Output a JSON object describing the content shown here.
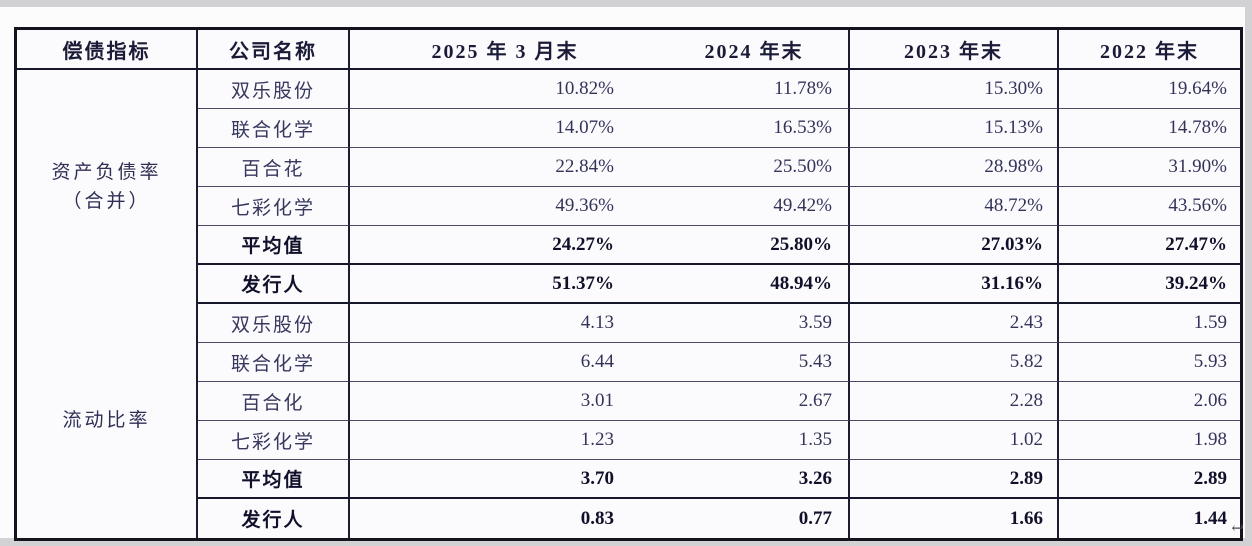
{
  "table": {
    "columns": [
      "偿债指标",
      "公司名称",
      "2025 年 3 月末",
      "2024 年末",
      "2023 年末",
      "2022 年末"
    ],
    "sections": [
      {
        "indicator": "资产负债率\n（合并）",
        "rows": [
          {
            "company": "双乐股份",
            "values": [
              "10.82%",
              "11.78%",
              "15.30%",
              "19.64%"
            ]
          },
          {
            "company": "联合化学",
            "values": [
              "14.07%",
              "16.53%",
              "15.13%",
              "14.78%"
            ]
          },
          {
            "company": "百合花",
            "values": [
              "22.84%",
              "25.50%",
              "28.98%",
              "31.90%"
            ]
          },
          {
            "company": "七彩化学",
            "values": [
              "49.36%",
              "49.42%",
              "48.72%",
              "43.56%"
            ]
          },
          {
            "company": "平均值",
            "values": [
              "24.27%",
              "25.80%",
              "27.03%",
              "27.47%"
            ]
          },
          {
            "company": "发行人",
            "values": [
              "51.37%",
              "48.94%",
              "31.16%",
              "39.24%"
            ]
          }
        ]
      },
      {
        "indicator": "流动比率",
        "rows": [
          {
            "company": "双乐股份",
            "values": [
              "4.13",
              "3.59",
              "2.43",
              "1.59"
            ]
          },
          {
            "company": "联合化学",
            "values": [
              "6.44",
              "5.43",
              "5.82",
              "5.93"
            ]
          },
          {
            "company": "百合化",
            "values": [
              "3.01",
              "2.67",
              "2.28",
              "2.06"
            ]
          },
          {
            "company": "七彩化学",
            "values": [
              "1.23",
              "1.35",
              "1.02",
              "1.98"
            ]
          },
          {
            "company": "平均值",
            "values": [
              "3.70",
              "3.26",
              "2.89",
              "2.89"
            ]
          },
          {
            "company": "发行人",
            "values": [
              "0.83",
              "0.77",
              "1.66",
              "1.44"
            ]
          }
        ]
      }
    ],
    "return_mark": "↩"
  }
}
